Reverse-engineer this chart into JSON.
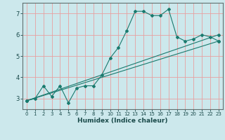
{
  "title": "",
  "xlabel": "Humidex (Indice chaleur)",
  "bg_color": "#cce8ec",
  "grid_color_v": "#e8a0a0",
  "grid_color_h": "#e8a0a0",
  "line_color": "#1a7a6e",
  "xlim": [
    -0.5,
    23.5
  ],
  "ylim": [
    2.5,
    7.5
  ],
  "xticks": [
    0,
    1,
    2,
    3,
    4,
    5,
    6,
    7,
    8,
    9,
    10,
    11,
    12,
    13,
    14,
    15,
    16,
    17,
    18,
    19,
    20,
    21,
    22,
    23
  ],
  "yticks": [
    3,
    4,
    5,
    6,
    7
  ],
  "series1": {
    "x": [
      0,
      1,
      2,
      3,
      4,
      5,
      6,
      7,
      8,
      9,
      10,
      11,
      12,
      13,
      14,
      15,
      16,
      17,
      18,
      19,
      20,
      21,
      22,
      23
    ],
    "y": [
      2.9,
      3.0,
      3.6,
      3.1,
      3.6,
      2.8,
      3.5,
      3.6,
      3.6,
      4.1,
      4.9,
      5.4,
      6.2,
      7.1,
      7.1,
      6.9,
      6.9,
      7.2,
      5.9,
      5.7,
      5.8,
      6.0,
      5.9,
      5.7
    ]
  },
  "series2": {
    "x": [
      0,
      23
    ],
    "y": [
      2.9,
      5.7
    ]
  },
  "series3": {
    "x": [
      0,
      23
    ],
    "y": [
      2.9,
      6.0
    ]
  }
}
